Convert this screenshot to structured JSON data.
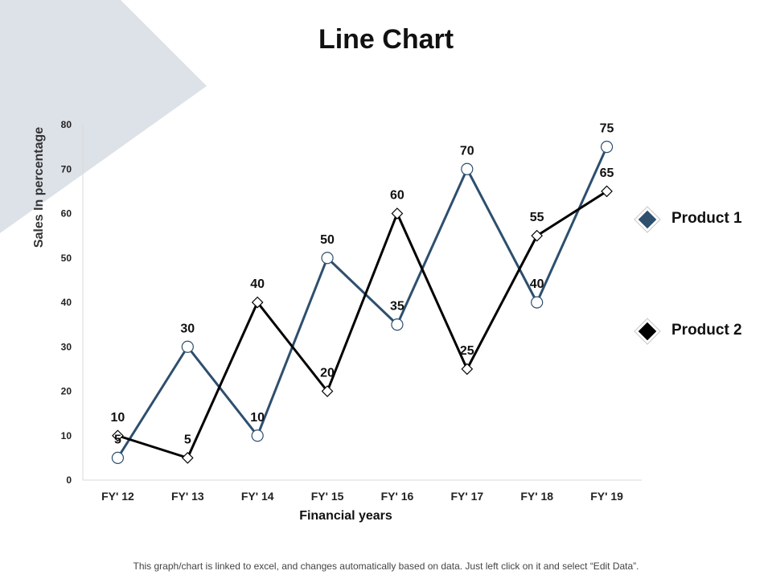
{
  "page_title": "Line Chart",
  "footer_note": "This graph/chart is linked to excel, and changes automatically based on data. Just left click on it and select “Edit Data”.",
  "colors": {
    "product1": "#2e4f6e",
    "product2": "#000000",
    "decor": "#dde1e8",
    "axis": "#d9d9d9"
  },
  "chart_data": {
    "type": "line",
    "title": "Line Chart",
    "xlabel": "Financial years",
    "ylabel": "Sales In percentage",
    "categories": [
      "FY' 12",
      "FY' 13",
      "FY' 14",
      "FY' 15",
      "FY' 16",
      "FY' 17",
      "FY' 18",
      "FY' 19"
    ],
    "ylim": [
      0,
      80
    ],
    "yticks": [
      0,
      10,
      20,
      30,
      40,
      50,
      60,
      70,
      80
    ],
    "grid": false,
    "legend": "right",
    "series": [
      {
        "name": "Product 1",
        "marker": "circle",
        "values": [
          5,
          30,
          10,
          50,
          35,
          70,
          40,
          75
        ]
      },
      {
        "name": "Product 2",
        "marker": "diamond",
        "values": [
          10,
          5,
          40,
          20,
          60,
          25,
          55,
          65
        ]
      }
    ]
  }
}
